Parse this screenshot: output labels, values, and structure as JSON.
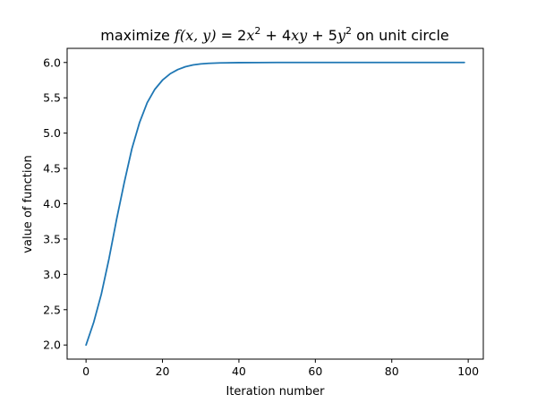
{
  "chart_data": {
    "type": "line",
    "title": {
      "prefix": "maximize ",
      "expr_fx": "f(x, y)",
      "expr_eq": " = 2",
      "expr_x2": "x",
      "sup1": "2",
      "expr_mid": " + 4",
      "expr_xy": "xy",
      "expr_plus5": " + 5",
      "expr_y2": "y",
      "sup2": "2",
      "suffix": " on unit circle"
    },
    "xlabel": "Iteration number",
    "ylabel": "value of function",
    "xlim": [
      -4.95,
      103.95
    ],
    "ylim": [
      1.8,
      6.2
    ],
    "xticks": [
      0,
      20,
      40,
      60,
      80,
      100
    ],
    "xtick_labels": [
      "0",
      "20",
      "40",
      "60",
      "80",
      "100"
    ],
    "yticks": [
      2.0,
      2.5,
      3.0,
      3.5,
      4.0,
      4.5,
      5.0,
      5.5,
      6.0
    ],
    "ytick_labels": [
      "2.0",
      "2.5",
      "3.0",
      "3.5",
      "4.0",
      "4.5",
      "5.0",
      "5.5",
      "6.0"
    ],
    "grid": false,
    "legend": null,
    "series": [
      {
        "color": "#1f77b4",
        "x": [
          0,
          2,
          4,
          6,
          8,
          10,
          12,
          14,
          16,
          18,
          20,
          22,
          24,
          26,
          28,
          30,
          32,
          35,
          40,
          45,
          50,
          60,
          70,
          80,
          90,
          99
        ],
        "y": [
          2.0,
          2.32,
          2.72,
          3.22,
          3.78,
          4.3,
          4.78,
          5.15,
          5.43,
          5.62,
          5.75,
          5.84,
          5.9,
          5.94,
          5.965,
          5.98,
          5.988,
          5.994,
          5.998,
          5.999,
          6.0,
          6.0,
          6.0,
          6.0,
          6.0,
          6.0
        ]
      }
    ]
  }
}
